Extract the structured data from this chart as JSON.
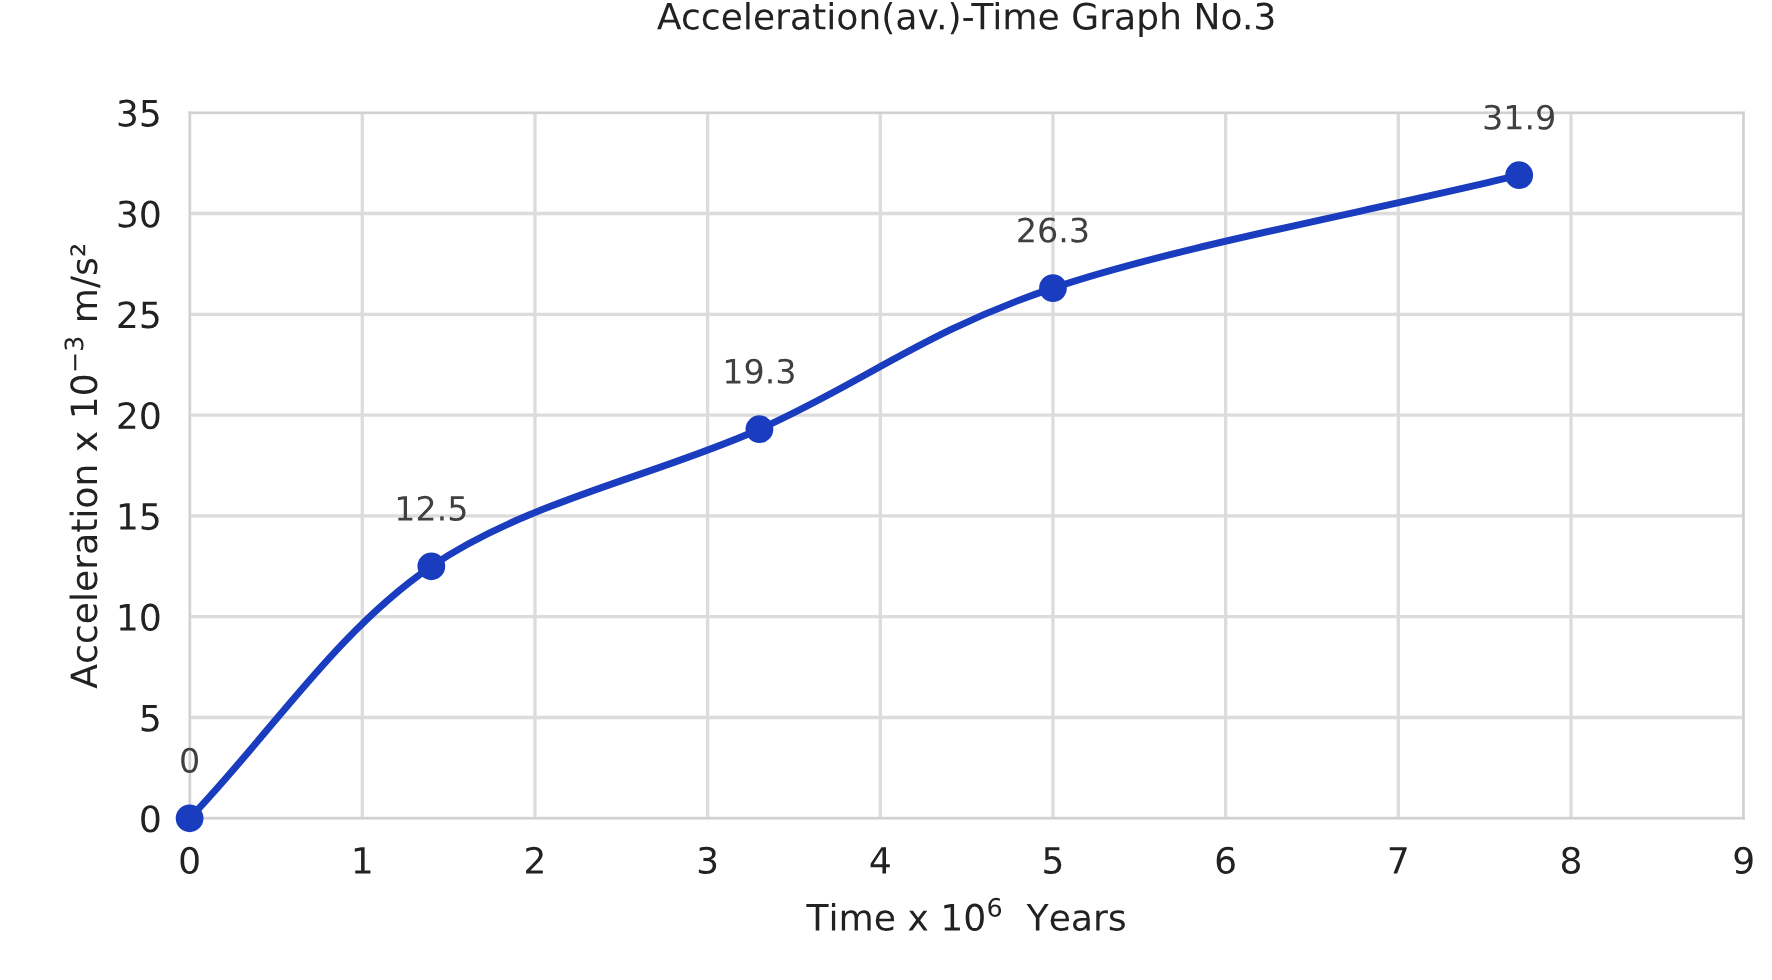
{
  "chart_data": {
    "type": "line",
    "title": "Acceleration(av.)-Time Graph No.3",
    "xlabel": "Time x 10$^{6}$  Years",
    "ylabel": "Acceleration x 10$^{−3}$ m/s²",
    "series": [
      {
        "color": "#1a3dbf",
        "x": [
          0,
          1.4,
          3.3,
          5.0,
          7.7
        ],
        "values": [
          0,
          12.5,
          19.3,
          26.3,
          31.9
        ]
      }
    ],
    "xlim": [
      0,
      9
    ],
    "xticks": [
      0,
      1,
      2,
      3,
      4,
      5,
      6,
      7,
      8,
      9
    ],
    "ylim": [
      0,
      35
    ],
    "yticks": [
      0,
      5,
      10,
      15,
      20,
      25,
      30,
      35
    ],
    "grid": true,
    "marker": "circle",
    "line_style": "solid",
    "data_labels": true
  }
}
